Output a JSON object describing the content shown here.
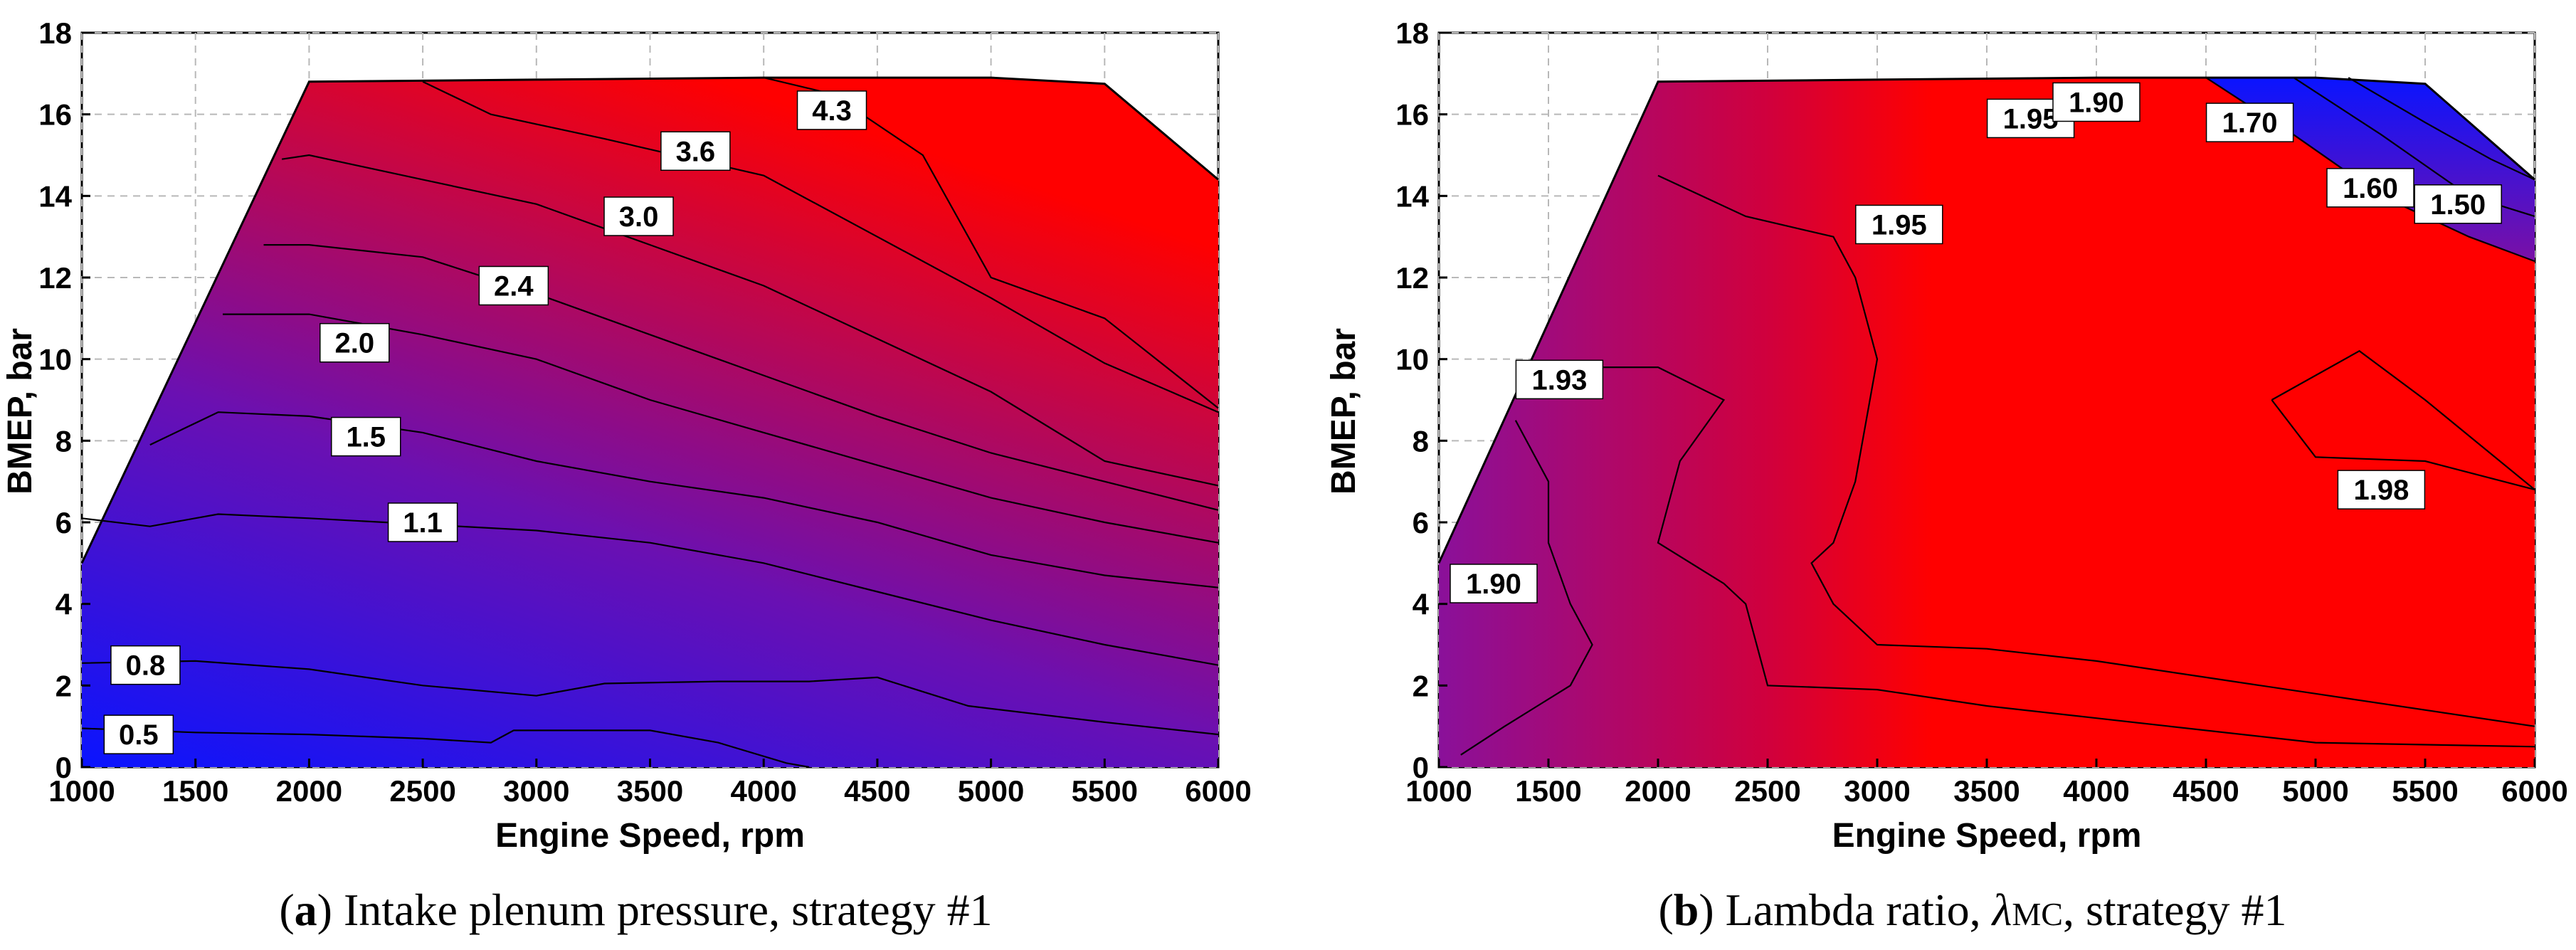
{
  "chart_data": [
    {
      "type": "contour",
      "caption": {
        "letter": "a",
        "text": " Intake plenum pressure, strategy #1"
      },
      "xlabel": "Engine Speed, rpm",
      "ylabel": "BMEP, bar",
      "xlim": [
        1000,
        6000
      ],
      "ylim": [
        0,
        18
      ],
      "xticks": [
        1000,
        1500,
        2000,
        2500,
        3000,
        3500,
        4000,
        4500,
        5000,
        5500,
        6000
      ],
      "yticks": [
        0,
        2,
        4,
        6,
        8,
        10,
        12,
        14,
        16,
        18
      ],
      "grid": true,
      "colormap": {
        "low": "#0a14ff",
        "mid": "#7a10a6",
        "high": "#ff0000"
      },
      "boundary": [
        [
          1000,
          5.0
        ],
        [
          2000,
          16.8
        ],
        [
          3000,
          16.85
        ],
        [
          4000,
          16.9
        ],
        [
          5000,
          16.9
        ],
        [
          5500,
          16.75
        ],
        [
          6000,
          14.4
        ]
      ],
      "contour_levels": [
        0.5,
        0.8,
        1.1,
        1.5,
        2.0,
        2.4,
        3.0,
        3.6,
        4.3
      ],
      "isolines": [
        {
          "level": 0.5,
          "label": "0.5",
          "label_at": [
            1250,
            0.8
          ],
          "points": [
            [
              1000,
              0.95
            ],
            [
              1500,
              0.85
            ],
            [
              2000,
              0.8
            ],
            [
              2500,
              0.7
            ],
            [
              2800,
              0.6
            ],
            [
              2900,
              0.9
            ],
            [
              3500,
              0.9
            ],
            [
              3800,
              0.6
            ],
            [
              4100,
              0.1
            ],
            [
              4200,
              0.0
            ]
          ]
        },
        {
          "level": 0.8,
          "label": "0.8",
          "label_at": [
            1280,
            2.5
          ],
          "points": [
            [
              1000,
              2.55
            ],
            [
              1500,
              2.6
            ],
            [
              2000,
              2.4
            ],
            [
              2500,
              2.0
            ],
            [
              3000,
              1.75
            ],
            [
              3300,
              2.05
            ],
            [
              3800,
              2.1
            ],
            [
              4200,
              2.1
            ],
            [
              4500,
              2.2
            ],
            [
              4900,
              1.5
            ],
            [
              5500,
              1.1
            ],
            [
              6000,
              0.8
            ]
          ]
        },
        {
          "level": 1.1,
          "label": "1.1",
          "label_at": [
            2500,
            6.0
          ],
          "points": [
            [
              1000,
              6.1
            ],
            [
              1300,
              5.9
            ],
            [
              1600,
              6.2
            ],
            [
              2000,
              6.1
            ],
            [
              2500,
              5.95
            ],
            [
              3000,
              5.8
            ],
            [
              3500,
              5.5
            ],
            [
              4000,
              5.0
            ],
            [
              4500,
              4.3
            ],
            [
              5000,
              3.6
            ],
            [
              5500,
              3.0
            ],
            [
              6000,
              2.5
            ]
          ]
        },
        {
          "level": 1.5,
          "label": "1.5",
          "label_at": [
            2250,
            8.1
          ],
          "points": [
            [
              1300,
              7.9
            ],
            [
              1600,
              8.7
            ],
            [
              2000,
              8.6
            ],
            [
              2500,
              8.2
            ],
            [
              3000,
              7.5
            ],
            [
              3500,
              7.0
            ],
            [
              4000,
              6.6
            ],
            [
              4500,
              6.0
            ],
            [
              5000,
              5.2
            ],
            [
              5500,
              4.7
            ],
            [
              6000,
              4.4
            ]
          ]
        },
        {
          "level": 2.0,
          "label": "2.0",
          "label_at": [
            2200,
            10.4
          ],
          "points": [
            [
              1620,
              11.1
            ],
            [
              2000,
              11.1
            ],
            [
              2500,
              10.6
            ],
            [
              3000,
              10.0
            ],
            [
              3500,
              9.0
            ],
            [
              4000,
              8.2
            ],
            [
              4500,
              7.4
            ],
            [
              5000,
              6.6
            ],
            [
              5500,
              6.0
            ],
            [
              6000,
              5.5
            ]
          ]
        },
        {
          "level": 2.4,
          "label": "2.4",
          "label_at": [
            2900,
            11.8
          ],
          "points": [
            [
              1800,
              12.8
            ],
            [
              2000,
              12.8
            ],
            [
              2500,
              12.5
            ],
            [
              3000,
              11.6
            ],
            [
              3500,
              10.6
            ],
            [
              4000,
              9.6
            ],
            [
              4500,
              8.6
            ],
            [
              5000,
              7.7
            ],
            [
              5500,
              7.0
            ],
            [
              6000,
              6.3
            ]
          ]
        },
        {
          "level": 3.0,
          "label": "3.0",
          "label_at": [
            3450,
            13.5
          ],
          "points": [
            [
              1880,
              14.9
            ],
            [
              2000,
              15.0
            ],
            [
              2500,
              14.4
            ],
            [
              3000,
              13.8
            ],
            [
              3500,
              12.8
            ],
            [
              4000,
              11.8
            ],
            [
              4500,
              10.5
            ],
            [
              5000,
              9.2
            ],
            [
              5500,
              7.5
            ],
            [
              6000,
              6.9
            ]
          ]
        },
        {
          "level": 3.6,
          "label": "3.6",
          "label_at": [
            3700,
            15.1
          ],
          "points": [
            [
              2500,
              16.8
            ],
            [
              2800,
              16.0
            ],
            [
              3300,
              15.4
            ],
            [
              4000,
              14.5
            ],
            [
              4500,
              13.0
            ],
            [
              5000,
              11.5
            ],
            [
              5500,
              9.9
            ],
            [
              6000,
              8.7
            ]
          ]
        },
        {
          "level": 4.3,
          "label": "4.3",
          "label_at": [
            4300,
            16.1
          ],
          "points": [
            [
              4000,
              16.9
            ],
            [
              4300,
              16.5
            ],
            [
              4700,
              15.0
            ],
            [
              5000,
              12.0
            ],
            [
              5500,
              11.0
            ],
            [
              6000,
              8.8
            ]
          ]
        }
      ]
    },
    {
      "type": "contour",
      "caption": {
        "letter": "b",
        "text_pre": " Lambda ratio, ",
        "symbol": "λ",
        "sub": "MC",
        "text_post": ", strategy #1"
      },
      "xlabel": "Engine Speed, rpm",
      "ylabel": "BMEP, bar",
      "xlim": [
        1000,
        6000
      ],
      "ylim": [
        0,
        18
      ],
      "xticks": [
        1000,
        1500,
        2000,
        2500,
        3000,
        3500,
        4000,
        4500,
        5000,
        5500,
        6000
      ],
      "yticks": [
        0,
        2,
        4,
        6,
        8,
        10,
        12,
        14,
        16,
        18
      ],
      "grid": true,
      "colormap": {
        "low": "#0a14ff",
        "mid": "#7a10a6",
        "high": "#ff0000"
      },
      "boundary": [
        [
          1000,
          5.0
        ],
        [
          2000,
          16.8
        ],
        [
          3000,
          16.85
        ],
        [
          4000,
          16.9
        ],
        [
          5000,
          16.9
        ],
        [
          5500,
          16.75
        ],
        [
          6000,
          14.4
        ]
      ],
      "contour_levels": [
        1.5,
        1.6,
        1.7,
        1.9,
        1.93,
        1.95,
        1.98
      ],
      "isolines": [
        {
          "level": 1.9,
          "label": "1.90",
          "label_at": [
            1250,
            4.5
          ],
          "points": [
            [
              1350,
              8.5
            ],
            [
              1500,
              7.0
            ],
            [
              1500,
              5.5
            ],
            [
              1600,
              4.0
            ],
            [
              1700,
              3.0
            ],
            [
              1600,
              2.0
            ],
            [
              1300,
              1.0
            ],
            [
              1100,
              0.3
            ]
          ]
        },
        {
          "level": 1.93,
          "label": "1.93",
          "label_at": [
            1550,
            9.5
          ],
          "points": [
            [
              1500,
              9.8
            ],
            [
              2000,
              9.8
            ],
            [
              2300,
              9.0
            ],
            [
              2100,
              7.5
            ],
            [
              2000,
              5.5
            ],
            [
              2300,
              4.5
            ],
            [
              2400,
              4.0
            ],
            [
              2500,
              2.0
            ],
            [
              3000,
              1.9
            ],
            [
              3500,
              1.5
            ],
            [
              4000,
              1.2
            ],
            [
              5000,
              0.6
            ],
            [
              6000,
              0.5
            ]
          ]
        },
        {
          "level": 1.95,
          "label": "1.95",
          "label_at": [
            3100,
            13.3
          ],
          "points": [
            [
              2000,
              14.5
            ],
            [
              2400,
              13.5
            ],
            [
              2800,
              13.0
            ],
            [
              2900,
              12.0
            ],
            [
              3000,
              10.0
            ],
            [
              2900,
              7.0
            ],
            [
              2800,
              5.5
            ],
            [
              2700,
              5.0
            ],
            [
              2800,
              4.0
            ],
            [
              3000,
              3.0
            ],
            [
              3500,
              2.9
            ],
            [
              4000,
              2.6
            ],
            [
              4500,
              2.2
            ],
            [
              5000,
              1.8
            ],
            [
              6000,
              1.0
            ]
          ]
        },
        {
          "level": 1.98,
          "label": "1.98",
          "label_at": [
            5300,
            6.8
          ],
          "points": [
            [
              4800,
              9.0
            ],
            [
              5200,
              10.2
            ],
            [
              5500,
              9.0
            ],
            [
              6000,
              6.8
            ],
            [
              5500,
              7.5
            ],
            [
              5000,
              7.6
            ],
            [
              4800,
              9.0
            ]
          ]
        },
        {
          "level": 1.7,
          "label": "1.70",
          "label_at": [
            4700,
            15.8
          ],
          "points": [
            [
              4500,
              16.9
            ],
            [
              4900,
              15.5
            ],
            [
              5300,
              14.0
            ],
            [
              5700,
              13.0
            ],
            [
              6000,
              12.4
            ]
          ]
        },
        {
          "level": 1.6,
          "label": "1.60",
          "label_at": [
            5250,
            14.2
          ],
          "points": [
            [
              4900,
              16.9
            ],
            [
              5300,
              15.5
            ],
            [
              5700,
              14.0
            ],
            [
              6000,
              13.5
            ]
          ]
        },
        {
          "level": 1.5,
          "label": "1.50",
          "label_at": [
            5650,
            13.8
          ],
          "points": [
            [
              5150,
              16.9
            ],
            [
              5500,
              15.8
            ],
            [
              5800,
              14.9
            ],
            [
              6000,
              14.4
            ]
          ]
        }
      ],
      "extra_labels": [
        {
          "label": "1.95",
          "label_at": [
            3700,
            15.9
          ]
        },
        {
          "label": "1.90",
          "label_at": [
            4000,
            16.3
          ]
        }
      ]
    }
  ]
}
